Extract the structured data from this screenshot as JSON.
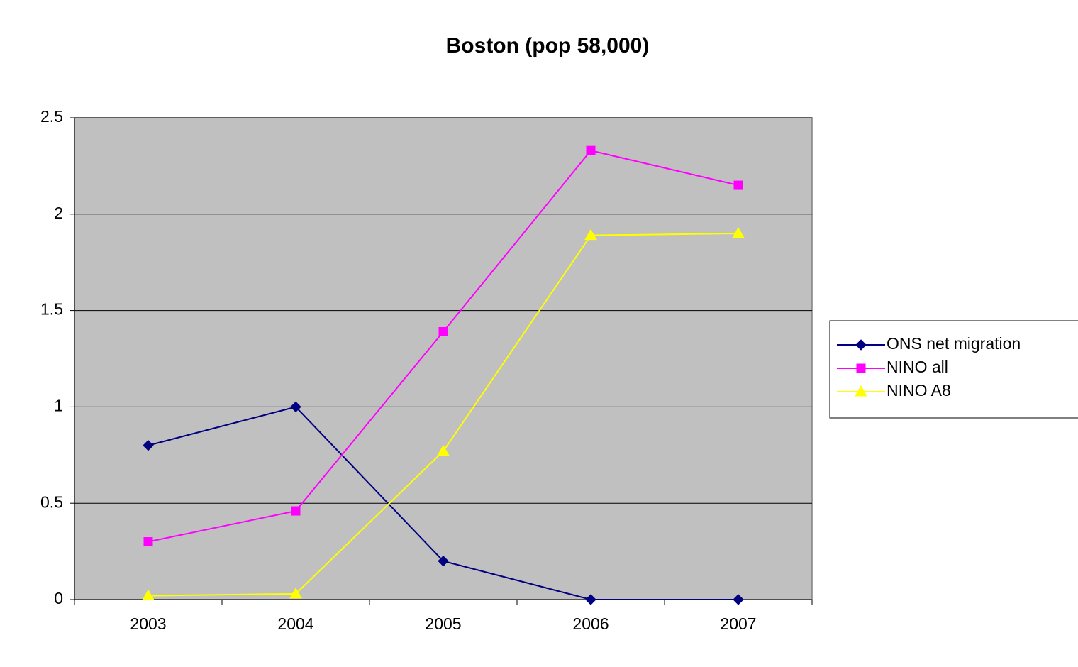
{
  "chart_data": {
    "type": "line",
    "title": "Boston (pop 58,000)",
    "categories": [
      "2003",
      "2004",
      "2005",
      "2006",
      "2007"
    ],
    "series": [
      {
        "name": "ONS net migration",
        "color": "#000080",
        "marker": "diamond",
        "values": [
          0.8,
          1.0,
          0.2,
          0,
          0
        ]
      },
      {
        "name": "NINO all",
        "color": "#ff00ff",
        "marker": "square",
        "values": [
          0.3,
          0.46,
          1.39,
          2.33,
          2.15
        ]
      },
      {
        "name": "NINO A8",
        "color": "#ffff00",
        "marker": "triangle",
        "values": [
          0.02,
          0.03,
          0.77,
          1.89,
          1.9
        ]
      }
    ],
    "ylim": [
      0,
      2.5
    ],
    "yticks": [
      0,
      0.5,
      1,
      1.5,
      2,
      2.5
    ],
    "grid": true,
    "legend": "right"
  }
}
